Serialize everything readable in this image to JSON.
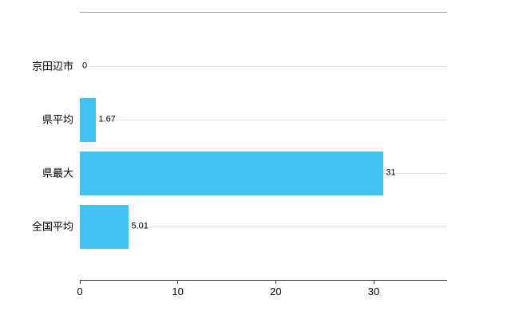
{
  "chart_data": {
    "type": "bar",
    "orientation": "horizontal",
    "title": "",
    "xlabel": "",
    "ylabel": "",
    "categories": [
      "京田辺市",
      "県平均",
      "県最大",
      "全国平均"
    ],
    "values": [
      0,
      1.67,
      31,
      5.01
    ],
    "value_labels": [
      "0",
      "1.67",
      "31",
      "5.01"
    ],
    "xlim": [
      0,
      37.5
    ],
    "xticks": [
      0,
      10,
      20,
      30
    ],
    "xtick_labels": [
      "0",
      "10",
      "20",
      "30"
    ],
    "bar_color": "#45c3f0",
    "grid": true,
    "gridline_color": "#e4e4e4",
    "legend_position": "none",
    "background_color": "#ffffff"
  }
}
